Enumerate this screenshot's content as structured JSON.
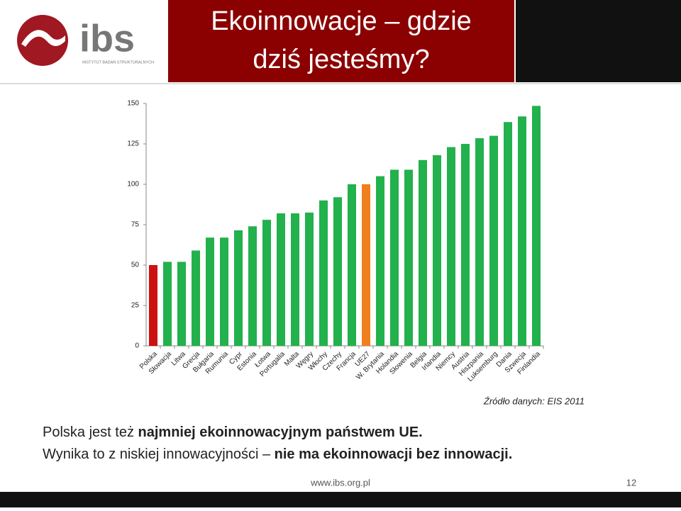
{
  "header": {
    "title_lines": [
      "Ekoinnowacje – gdzie",
      "dziś jesteśmy?"
    ],
    "logo_text": "ibs",
    "logo_subtext": "INSTYTUT BADAŃ STRUKTURALNYCH"
  },
  "chart_data": {
    "type": "bar",
    "categories": [
      "Polska",
      "Słowacja",
      "Litwa",
      "Grecja",
      "Bułgaria",
      "Rumunia",
      "Cypr",
      "Estonia",
      "Łotwa",
      "Portugalia",
      "Malta",
      "Węgry",
      "Włochy",
      "Czechy",
      "Francja",
      "UE27",
      "W. Brytania",
      "Holandia",
      "Słowenia",
      "Belgia",
      "Irlandia",
      "Niemcy",
      "Austria",
      "Hiszpania",
      "Luksemburg",
      "Dania",
      "Szwecja",
      "Finlandia"
    ],
    "values": [
      50,
      52,
      52,
      59,
      67,
      67,
      71.5,
      74,
      78,
      82,
      82,
      82.5,
      90,
      92,
      100,
      100,
      105,
      109,
      109,
      115,
      118,
      123,
      125,
      128.5,
      130,
      138.5,
      142,
      148.5
    ],
    "colors": [
      "#cc1111",
      "#22b14c",
      "#22b14c",
      "#22b14c",
      "#22b14c",
      "#22b14c",
      "#22b14c",
      "#22b14c",
      "#22b14c",
      "#22b14c",
      "#22b14c",
      "#22b14c",
      "#22b14c",
      "#22b14c",
      "#22b14c",
      "#f07f1e",
      "#22b14c",
      "#22b14c",
      "#22b14c",
      "#22b14c",
      "#22b14c",
      "#22b14c",
      "#22b14c",
      "#22b14c",
      "#22b14c",
      "#22b14c",
      "#22b14c",
      "#22b14c"
    ],
    "ylim": [
      0,
      150
    ],
    "yticks": [
      0,
      25,
      50,
      75,
      100,
      125,
      150
    ],
    "grid": false,
    "source": "Źródło danych: EIS 2011"
  },
  "body": {
    "line1": [
      "Polska jest też ",
      "najmniej ekoinnowacyjnym państwem UE."
    ],
    "line2": [
      "Wynika to z niskiej innowacyjności – ",
      "nie ma ekoinnowacji bez innowacji."
    ]
  },
  "footer": {
    "url": "www.ibs.org.pl",
    "page": "12"
  }
}
